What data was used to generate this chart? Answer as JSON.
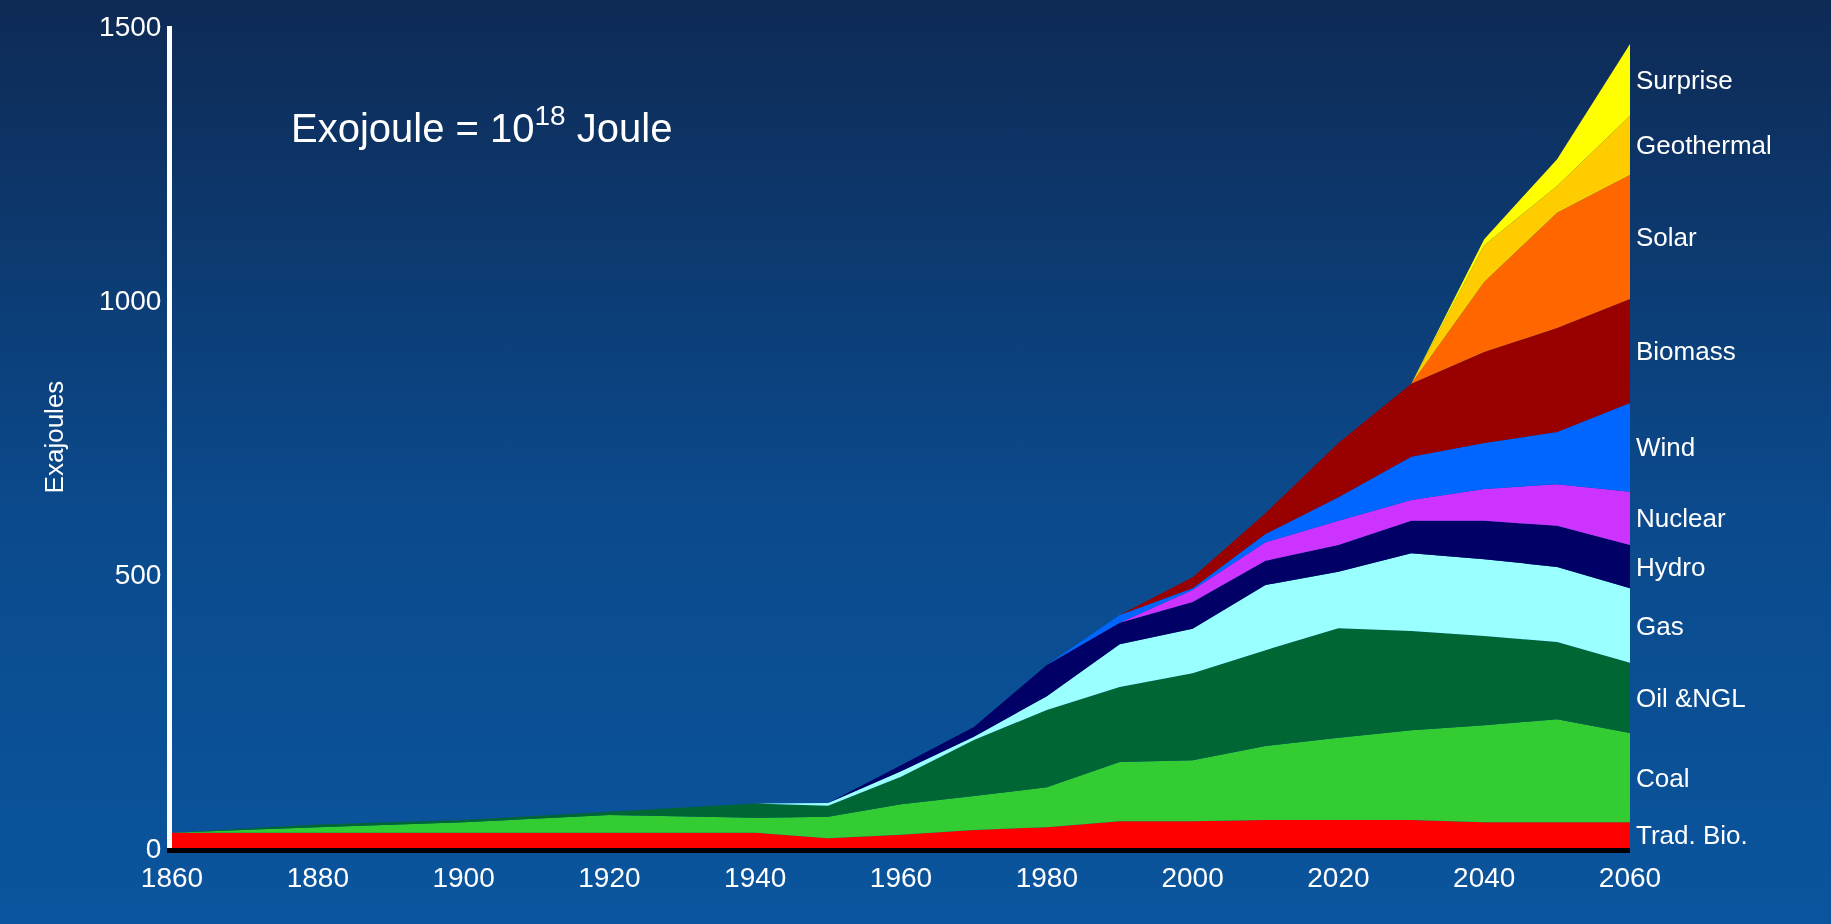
{
  "chart_data": {
    "type": "area",
    "stacked": true,
    "ylabel": "Exajoules",
    "annotations": [
      "Exojoule = 10$^{18}$ Joule"
    ],
    "x": [
      1860,
      1880,
      1900,
      1920,
      1940,
      1950,
      1960,
      1970,
      1980,
      1990,
      2000,
      2010,
      2020,
      2030,
      2040,
      2050,
      2060
    ],
    "xlim": [
      1860,
      2060
    ],
    "xticks": [
      1860,
      1880,
      1900,
      1920,
      1940,
      1960,
      1980,
      2000,
      2020,
      2040,
      2060
    ],
    "ylim": [
      0,
      1500
    ],
    "yticks": [
      0,
      500,
      1000,
      1500
    ],
    "series": [
      {
        "name": "Trad. Bio.",
        "color": "#ff0000",
        "values": [
          28,
          28,
          28,
          28,
          28,
          18,
          24,
          33,
          38,
          49,
          49,
          51,
          51,
          51,
          47,
          47,
          47
        ]
      },
      {
        "name": "Coal",
        "color": "#33cc33",
        "values": [
          0,
          10,
          19,
          32,
          27,
          39,
          56,
          62,
          73,
          108,
          111,
          135,
          150,
          164,
          177,
          188,
          163
        ]
      },
      {
        "name": "Oil &NGL",
        "color": "#006633",
        "values": [
          0,
          5,
          4,
          6,
          26,
          20,
          50,
          102,
          141,
          137,
          159,
          175,
          200,
          181,
          163,
          141,
          128
        ]
      },
      {
        "name": "Gas",
        "color": "#99ffff",
        "values": [
          0,
          0,
          0,
          0,
          0,
          5,
          10,
          6,
          25,
          78,
          81,
          119,
          103,
          142,
          140,
          137,
          136
        ]
      },
      {
        "name": "Hydro",
        "color": "#000066",
        "values": [
          0,
          0,
          0,
          0,
          0,
          0,
          11,
          18,
          57,
          39,
          49,
          44,
          49,
          59,
          70,
          75,
          79
        ]
      },
      {
        "name": "Nuclear",
        "color": "#cc33ff",
        "values": [
          0,
          0,
          0,
          0,
          0,
          0,
          0,
          0,
          0,
          0,
          22,
          34,
          44,
          38,
          58,
          76,
          97
        ]
      },
      {
        "name": "Wind",
        "color": "#0066ff",
        "values": [
          0,
          0,
          0,
          0,
          0,
          0,
          0,
          0,
          0,
          14,
          3,
          15,
          43,
          79,
          84,
          95,
          162
        ]
      },
      {
        "name": "Biomass",
        "color": "#990000",
        "values": [
          0,
          0,
          0,
          0,
          0,
          0,
          0,
          0,
          0,
          0,
          20,
          38,
          99,
          133,
          166,
          190,
          190
        ]
      },
      {
        "name": "Solar",
        "color": "#ff6600",
        "values": [
          0,
          0,
          0,
          0,
          0,
          0,
          0,
          0,
          0,
          0,
          0,
          0,
          0,
          0,
          128,
          210,
          226
        ]
      },
      {
        "name": "Geothermal",
        "color": "#ffcc00",
        "values": [
          0,
          0,
          0,
          0,
          0,
          0,
          0,
          0,
          0,
          0,
          0,
          0,
          0,
          0,
          67,
          49,
          108
        ]
      },
      {
        "name": "Surprise",
        "color": "#ffff00",
        "values": [
          0,
          0,
          0,
          0,
          0,
          0,
          0,
          0,
          0,
          0,
          0,
          0,
          0,
          0,
          11,
          49,
          131
        ]
      }
    ]
  }
}
